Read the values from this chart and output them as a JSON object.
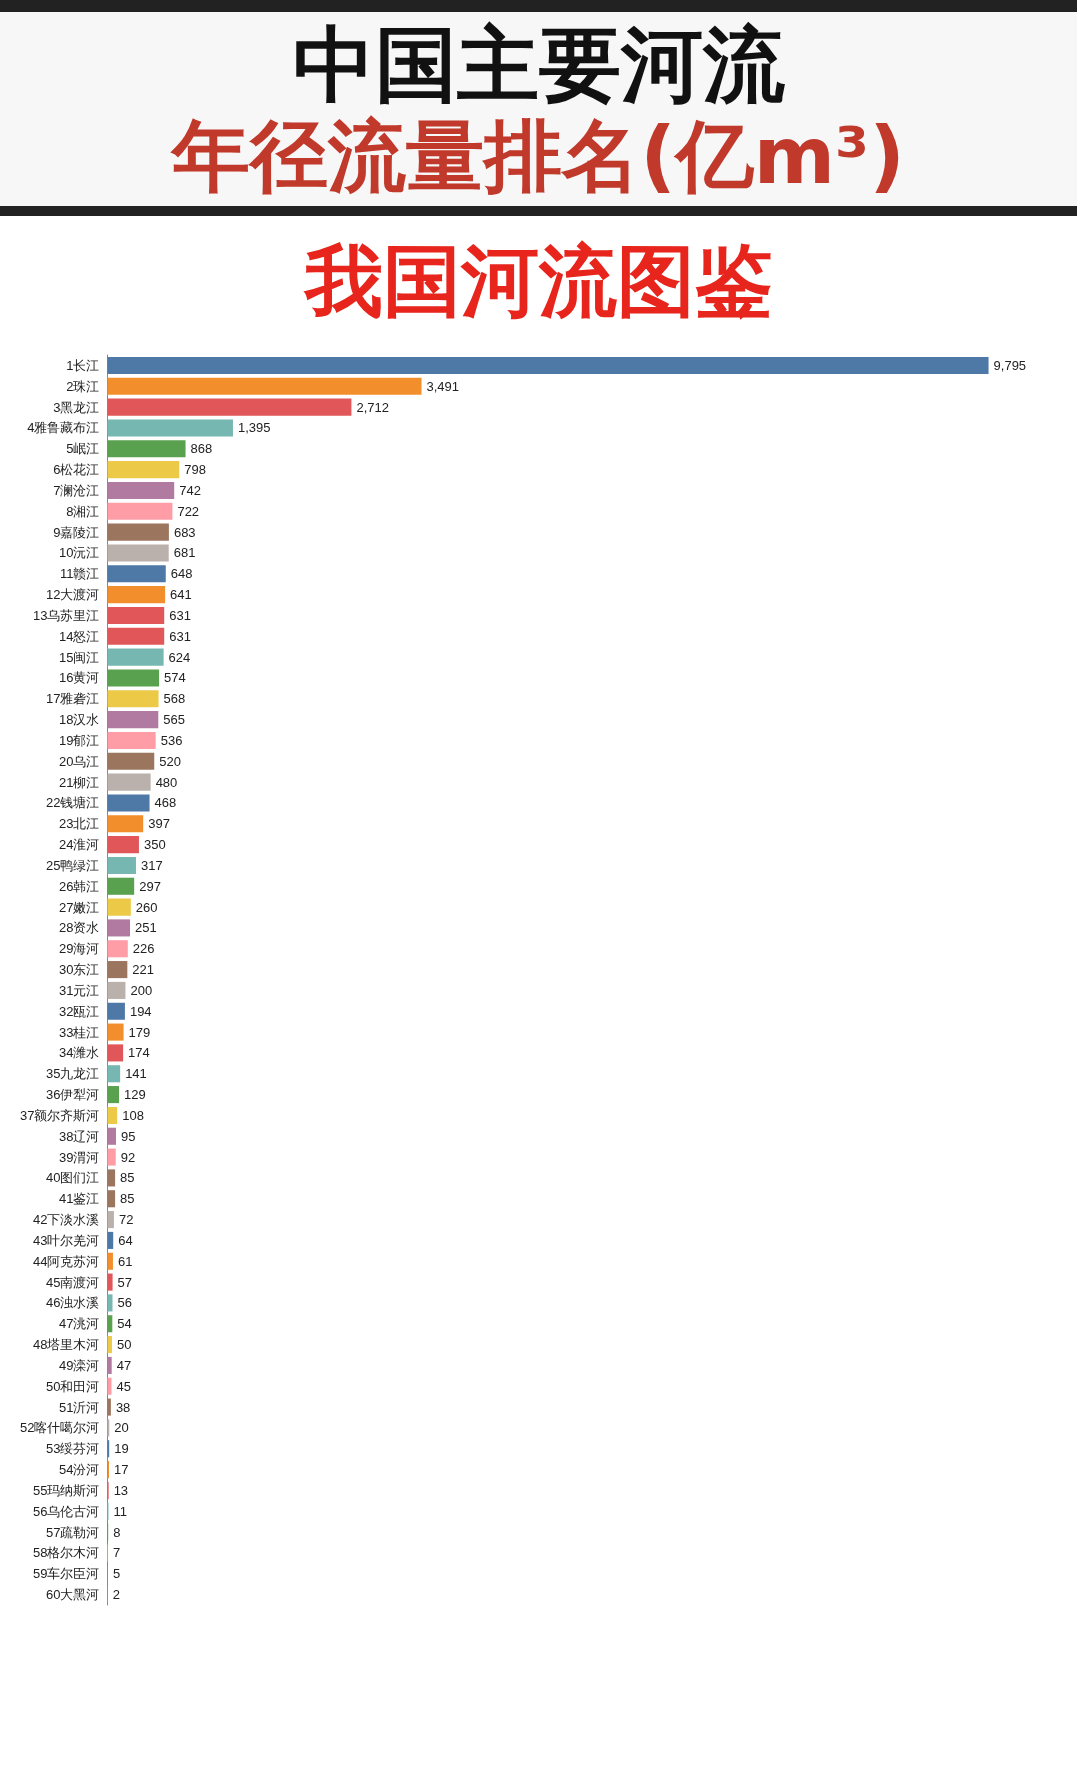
{
  "chart_data": {
    "type": "bar",
    "orientation": "horizontal",
    "title": "中国主要河流",
    "subtitle": "年径流量排名(亿m³)",
    "annotations": [
      "我国河流图鉴"
    ],
    "categories": [
      "1长江",
      "2珠江",
      "3黑龙江",
      "4雅鲁藏布江",
      "5岷江",
      "6松花江",
      "7澜沧江",
      "8湘江",
      "9嘉陵江",
      "10沅江",
      "11赣江",
      "12大渡河",
      "13乌苏里江",
      "14怒江",
      "15闽江",
      "16黄河",
      "17雅砻江",
      "18汉水",
      "19郁江",
      "20乌江",
      "21柳江",
      "22钱塘江",
      "23北江",
      "24淮河",
      "25鸭绿江",
      "26韩江",
      "27嫩江",
      "28资水",
      "29海河",
      "30东江",
      "31元江",
      "32瓯江",
      "33桂江",
      "34潍水",
      "35九龙江",
      "36伊犁河",
      "37额尔齐斯河",
      "38辽河",
      "39渭河",
      "40图们江",
      "41鉴江",
      "42下淡水溪",
      "43叶尔羌河",
      "44阿克苏河",
      "45南渡河",
      "46浊水溪",
      "47洮河",
      "48塔里木河",
      "49滦河",
      "50和田河",
      "51沂河",
      "52喀什噶尔河",
      "53绥芬河",
      "54汾河",
      "55玛纳斯河",
      "56乌伦古河",
      "57疏勒河",
      "58格尔木河",
      "59车尔臣河",
      "60大黑河"
    ],
    "values": [
      9795,
      3491,
      2712,
      1395,
      868,
      798,
      742,
      722,
      683,
      681,
      648,
      641,
      631,
      631,
      624,
      574,
      568,
      565,
      536,
      520,
      480,
      468,
      397,
      350,
      317,
      297,
      260,
      251,
      226,
      221,
      200,
      194,
      179,
      174,
      141,
      129,
      108,
      95,
      92,
      85,
      85,
      72,
      64,
      61,
      57,
      56,
      54,
      50,
      47,
      45,
      38,
      20,
      19,
      17,
      13,
      11,
      8,
      7,
      5,
      2
    ],
    "value_labels": [
      "9,795",
      "3,491",
      "2,712",
      "1,395",
      "868",
      "798",
      "742",
      "722",
      "683",
      "681",
      "648",
      "641",
      "631",
      "631",
      "624",
      "574",
      "568",
      "565",
      "536",
      "520",
      "480",
      "468",
      "397",
      "350",
      "317",
      "297",
      "260",
      "251",
      "226",
      "221",
      "200",
      "194",
      "179",
      "174",
      "141",
      "129",
      "108",
      "95",
      "92",
      "85",
      "85",
      "72",
      "64",
      "61",
      "57",
      "56",
      "54",
      "50",
      "47",
      "45",
      "38",
      "20",
      "19",
      "17",
      "13",
      "11",
      "8",
      "7",
      "5",
      "2"
    ],
    "colors": [
      "#4e79a7",
      "#f28e2b",
      "#e15759",
      "#76b7b2",
      "#59a14f",
      "#edc948",
      "#b07aa1",
      "#ff9da7",
      "#9c755f",
      "#bab0ac",
      "#4e79a7",
      "#f28e2b",
      "#e15759",
      "#e15759",
      "#76b7b2",
      "#59a14f",
      "#edc948",
      "#b07aa1",
      "#ff9da7",
      "#9c755f",
      "#bab0ac",
      "#4e79a7",
      "#f28e2b",
      "#e15759",
      "#76b7b2",
      "#59a14f",
      "#edc948",
      "#b07aa1",
      "#ff9da7",
      "#9c755f",
      "#bab0ac",
      "#4e79a7",
      "#f28e2b",
      "#e15759",
      "#76b7b2",
      "#59a14f",
      "#edc948",
      "#b07aa1",
      "#ff9da7",
      "#9c755f",
      "#9c755f",
      "#bab0ac",
      "#4e79a7",
      "#f28e2b",
      "#e15759",
      "#76b7b2",
      "#59a14f",
      "#edc948",
      "#b07aa1",
      "#ff9da7",
      "#9c755f",
      "#bab0ac",
      "#4e79a7",
      "#f28e2b",
      "#e15759",
      "#76b7b2",
      "#59a14f",
      "#edc948",
      "#b07aa1",
      "#ff9da7"
    ]
  }
}
